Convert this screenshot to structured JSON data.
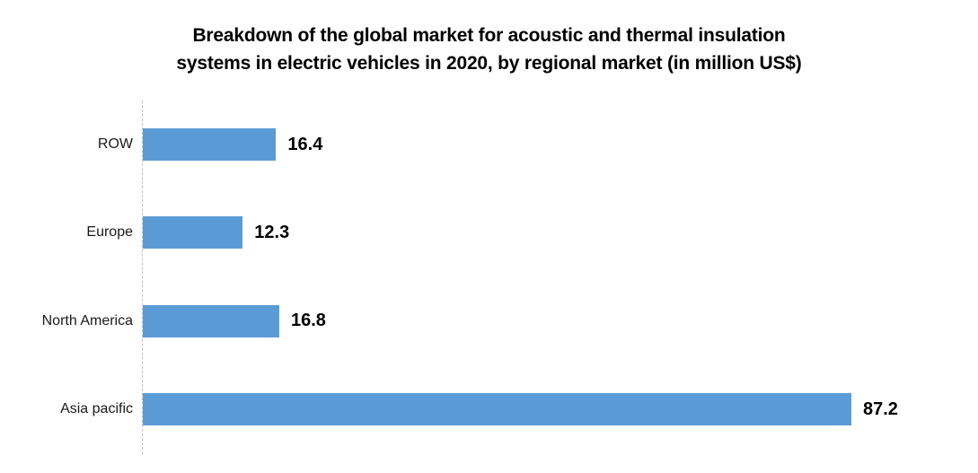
{
  "title": {
    "line1": "Breakdown of the global market for acoustic and thermal insulation",
    "line2": "systems in electric vehicles in 2020, by regional market (in million US$)"
  },
  "chart_data": {
    "type": "bar",
    "orientation": "horizontal",
    "title": "Breakdown of the global market for acoustic and thermal insulation systems in electric vehicles in 2020, by regional market (in million US$)",
    "categories": [
      "ROW",
      "Europe",
      "North America",
      "Asia pacific"
    ],
    "values": [
      16.4,
      12.3,
      16.8,
      87.2
    ],
    "value_labels": [
      "16.4",
      "12.3",
      "16.8",
      "87.2"
    ],
    "xlabel": "",
    "ylabel": "",
    "xlim": [
      0,
      95
    ],
    "grid": false,
    "legend": false,
    "bar_color": "#5B9BD5",
    "text_color": "#000000",
    "axis_line_color": "#BFBFBF"
  }
}
